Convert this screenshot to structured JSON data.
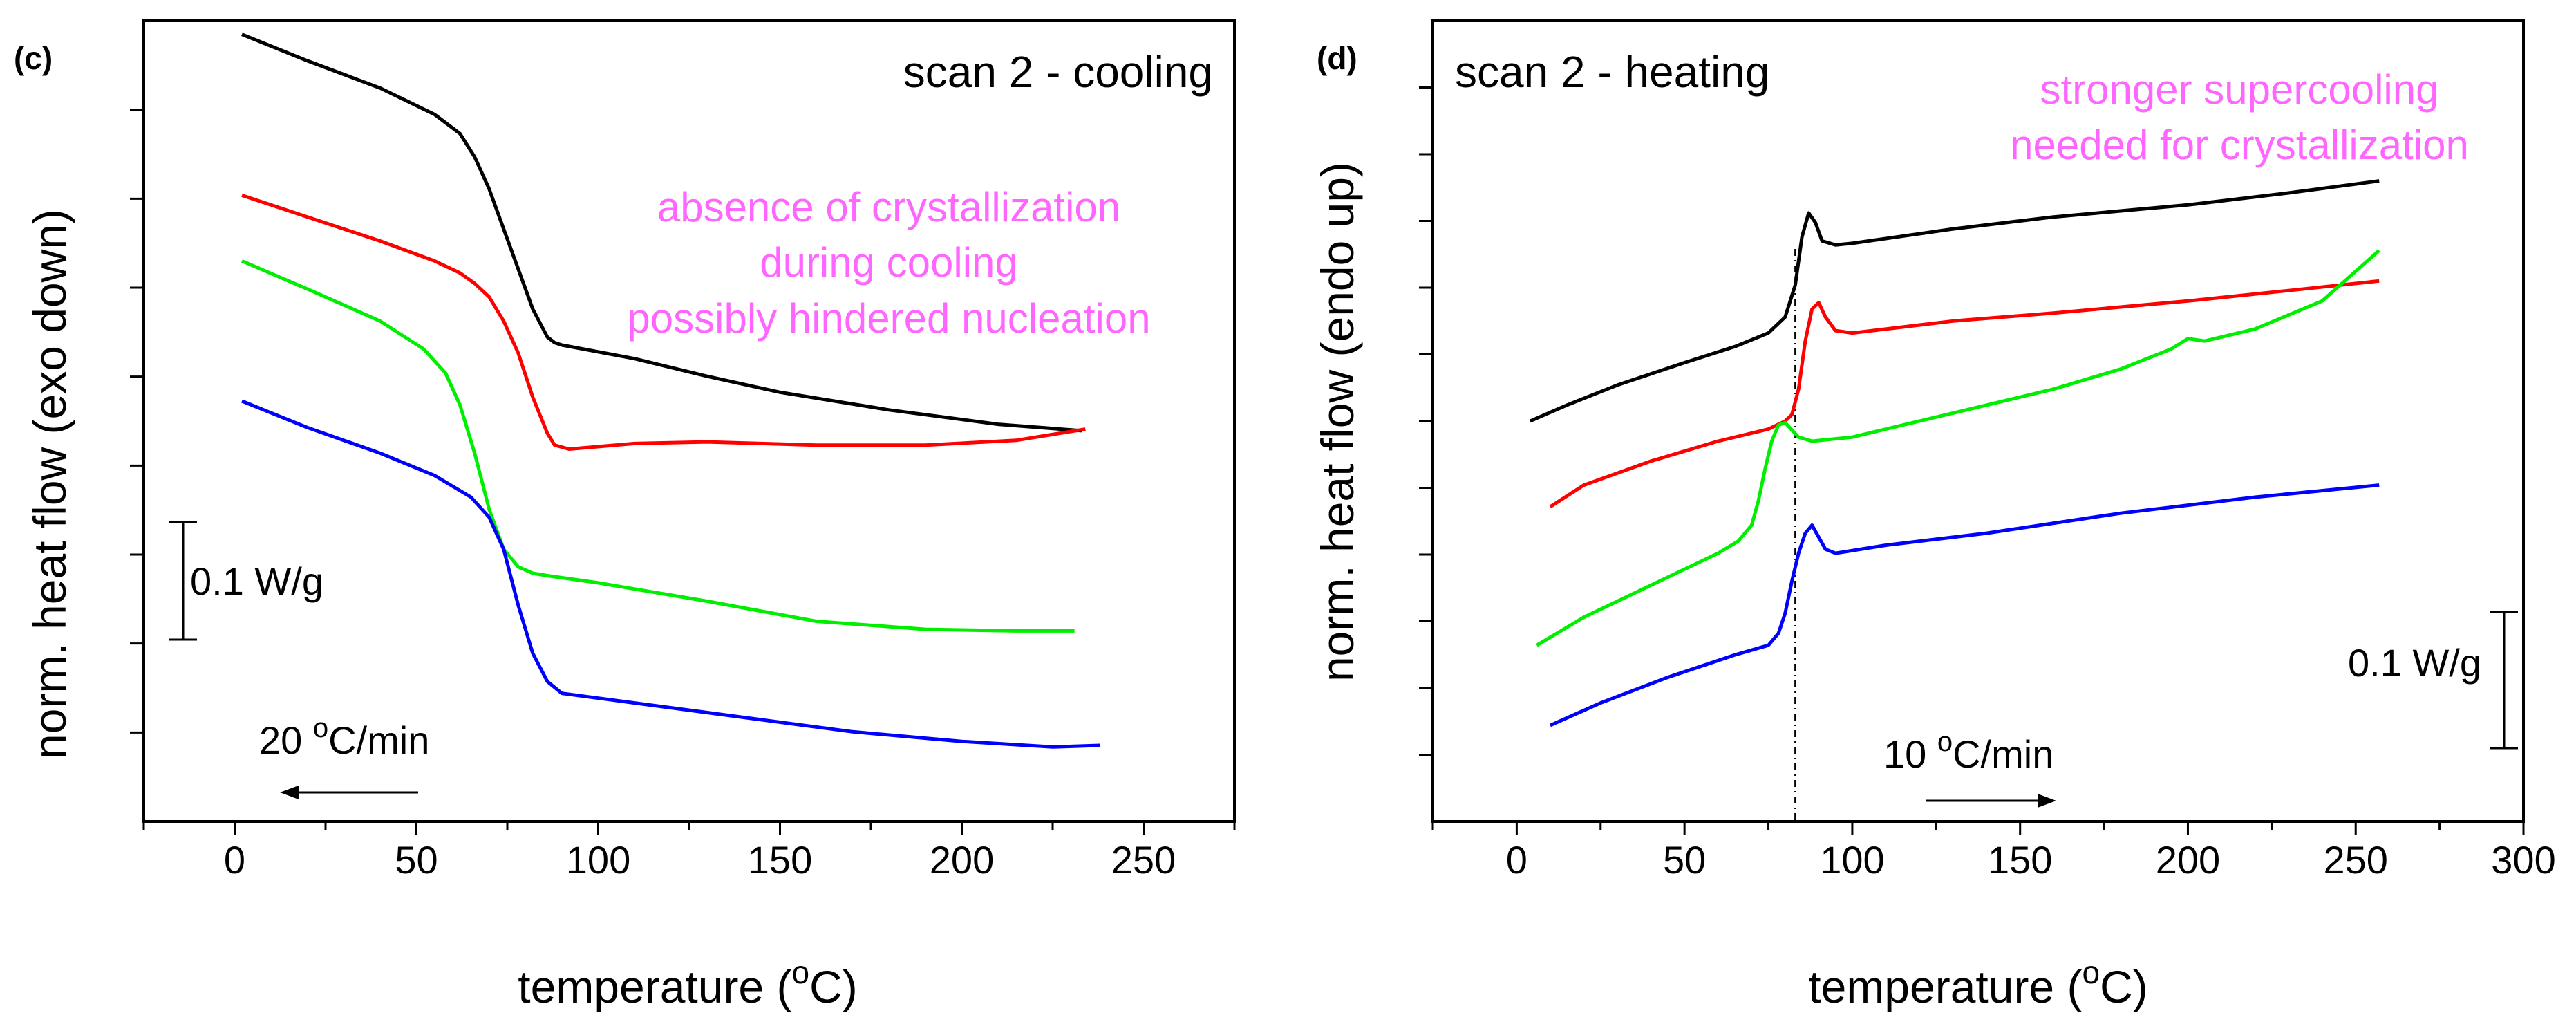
{
  "chart_data": [
    {
      "panel_label": "(c)",
      "type": "line",
      "title": "scan 2 -  cooling",
      "xlabel": "temperature (",
      "xlabel_sup": "o",
      "xlabel_tail": "C)",
      "ylabel": "norm. heat flow (exo down)",
      "xlim": [
        -25,
        275
      ],
      "ylim": [
        0,
        1
      ],
      "yticks_labeled": false,
      "xticks": [
        0,
        50,
        100,
        150,
        200,
        250
      ],
      "tick_labels": [
        "0",
        "50",
        "100",
        "150",
        "200",
        "250"
      ],
      "annotation": [
        "absence of crystallization",
        "during cooling",
        "possibly hindered nucleation"
      ],
      "annotation_color": "#ff66ff",
      "scale_bar_label": "0.1 W/g",
      "rate_label": "20 ",
      "rate_sup": "o",
      "rate_tail": "C/min",
      "rate_arrow": "left",
      "series": [
        {
          "name": "black",
          "color": "#000000",
          "x": [
            2,
            20,
            40,
            55,
            62,
            66,
            70,
            74,
            78,
            82,
            86,
            88,
            90,
            110,
            130,
            150,
            180,
            210,
            233
          ],
          "y": [
            0.983,
            0.95,
            0.916,
            0.883,
            0.859,
            0.83,
            0.79,
            0.74,
            0.69,
            0.64,
            0.605,
            0.598,
            0.595,
            0.578,
            0.556,
            0.536,
            0.514,
            0.496,
            0.488
          ]
        },
        {
          "name": "red",
          "color": "#ff0000",
          "x": [
            2,
            20,
            40,
            55,
            62,
            66,
            70,
            74,
            78,
            82,
            86,
            88,
            92,
            110,
            130,
            160,
            190,
            215,
            234
          ],
          "y": [
            0.782,
            0.755,
            0.725,
            0.7,
            0.685,
            0.672,
            0.655,
            0.625,
            0.585,
            0.53,
            0.485,
            0.47,
            0.465,
            0.472,
            0.474,
            0.47,
            0.47,
            0.476,
            0.49
          ]
        },
        {
          "name": "green",
          "color": "#00ee00",
          "x": [
            2,
            20,
            40,
            52,
            58,
            62,
            66,
            70,
            74,
            78,
            82,
            86,
            100,
            130,
            160,
            190,
            215,
            231
          ],
          "y": [
            0.7,
            0.665,
            0.625,
            0.59,
            0.56,
            0.52,
            0.46,
            0.39,
            0.34,
            0.318,
            0.31,
            0.307,
            0.298,
            0.275,
            0.25,
            0.24,
            0.238,
            0.238
          ]
        },
        {
          "name": "blue",
          "color": "#0000ff",
          "x": [
            2,
            20,
            40,
            55,
            65,
            70,
            74,
            78,
            82,
            86,
            90,
            110,
            140,
            170,
            200,
            225,
            238
          ],
          "y": [
            0.525,
            0.492,
            0.46,
            0.432,
            0.405,
            0.38,
            0.34,
            0.27,
            0.21,
            0.175,
            0.16,
            0.148,
            0.13,
            0.112,
            0.1,
            0.093,
            0.095
          ]
        }
      ]
    },
    {
      "panel_label": "(d)",
      "type": "line",
      "title": "scan 2 -  heating",
      "xlabel": "temperature (",
      "xlabel_sup": "o",
      "xlabel_tail": "C)",
      "ylabel": "norm. heat flow (endo up)",
      "xlim": [
        -25,
        300
      ],
      "ylim": [
        0,
        1
      ],
      "yticks_labeled": false,
      "xticks": [
        0,
        50,
        100,
        150,
        200,
        250,
        300
      ],
      "tick_labels": [
        "0",
        "50",
        "100",
        "150",
        "200",
        "250",
        "300"
      ],
      "annotation": [
        "stronger supercooling",
        "needed for crystallization"
      ],
      "annotation_color": "#ff66ff",
      "scale_bar_label": "0.1 W/g",
      "rate_label": "10 ",
      "rate_sup": "o",
      "rate_tail": "C/min",
      "rate_arrow": "right",
      "dashed_line_x": 83,
      "series": [
        {
          "name": "black",
          "color": "#000000",
          "x": [
            4,
            15,
            30,
            50,
            65,
            75,
            80,
            83,
            85,
            87,
            89,
            91,
            95,
            100,
            130,
            160,
            200,
            230,
            257
          ],
          "y": [
            0.5,
            0.52,
            0.545,
            0.573,
            0.593,
            0.61,
            0.63,
            0.67,
            0.73,
            0.76,
            0.748,
            0.725,
            0.72,
            0.722,
            0.74,
            0.755,
            0.77,
            0.785,
            0.8
          ]
        },
        {
          "name": "red",
          "color": "#ff0000",
          "x": [
            10,
            20,
            40,
            60,
            75,
            80,
            82,
            84,
            86,
            88,
            90,
            92,
            95,
            100,
            130,
            160,
            200,
            230,
            257
          ],
          "y": [
            0.393,
            0.42,
            0.45,
            0.475,
            0.49,
            0.5,
            0.508,
            0.54,
            0.6,
            0.64,
            0.648,
            0.63,
            0.613,
            0.61,
            0.625,
            0.635,
            0.65,
            0.663,
            0.675
          ]
        },
        {
          "name": "green",
          "color": "#00ee00",
          "x": [
            6,
            20,
            40,
            60,
            66,
            70,
            72,
            74,
            76,
            78,
            80,
            84,
            88,
            100,
            130,
            160,
            180,
            195,
            200,
            205,
            220,
            240,
            257
          ],
          "y": [
            0.22,
            0.255,
            0.295,
            0.335,
            0.35,
            0.37,
            0.4,
            0.44,
            0.475,
            0.495,
            0.498,
            0.48,
            0.475,
            0.48,
            0.51,
            0.54,
            0.565,
            0.59,
            0.603,
            0.6,
            0.615,
            0.65,
            0.713
          ]
        },
        {
          "name": "blue",
          "color": "#0000ff",
          "x": [
            10,
            25,
            45,
            65,
            75,
            78,
            80,
            82,
            84,
            86,
            88,
            90,
            92,
            95,
            110,
            140,
            180,
            220,
            257
          ],
          "y": [
            0.12,
            0.148,
            0.18,
            0.208,
            0.22,
            0.235,
            0.26,
            0.3,
            0.335,
            0.36,
            0.37,
            0.355,
            0.34,
            0.335,
            0.345,
            0.36,
            0.385,
            0.405,
            0.42
          ]
        }
      ]
    }
  ]
}
